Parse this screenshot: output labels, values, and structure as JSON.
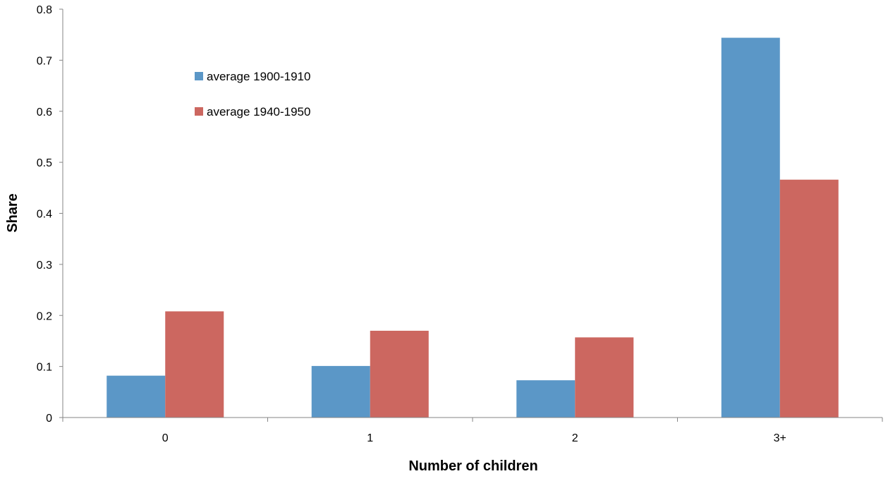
{
  "chart_data": {
    "type": "bar",
    "title": "",
    "xlabel": "Number of children",
    "ylabel": "Share",
    "categories": [
      "0",
      "1",
      "2",
      "3+"
    ],
    "ylim": [
      0,
      0.8
    ],
    "yticks": [
      0,
      0.1,
      0.2,
      0.3,
      0.4,
      0.5,
      0.6,
      0.7,
      0.8
    ],
    "grid": false,
    "legend_position": "upper-left inside plot",
    "series": [
      {
        "name": "average 1900-1910",
        "color": "#5B97C7",
        "values": [
          0.082,
          0.101,
          0.073,
          0.744
        ]
      },
      {
        "name": "average 1940-1950",
        "color": "#CC6760",
        "values": [
          0.208,
          0.17,
          0.157,
          0.466
        ]
      }
    ]
  }
}
